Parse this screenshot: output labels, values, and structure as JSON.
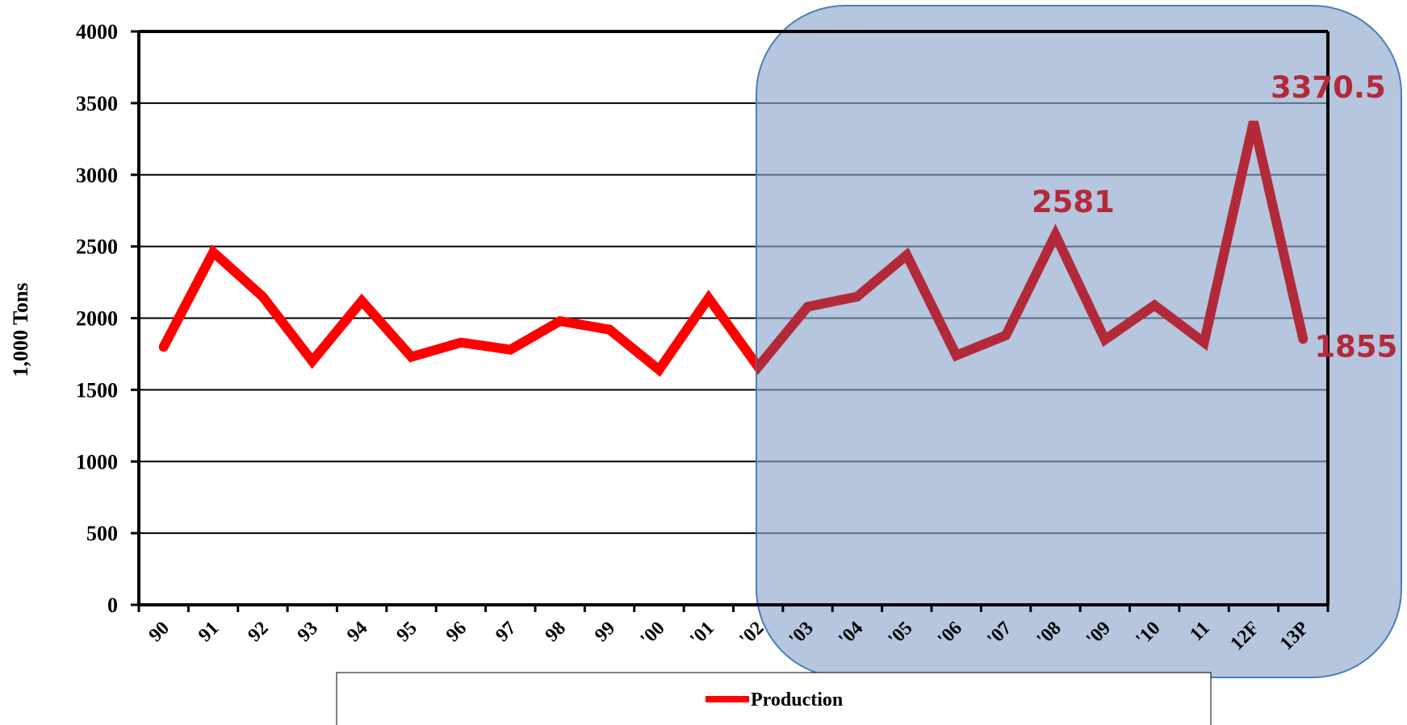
{
  "chart_data": {
    "type": "line",
    "ylabel": "1,000 Tons",
    "ylim": [
      0,
      4000
    ],
    "yticks": [
      0,
      500,
      1000,
      1500,
      2000,
      2500,
      3000,
      3500,
      4000
    ],
    "grid": true,
    "legend_position": "bottom",
    "categories": [
      "90",
      "91",
      "92",
      "93",
      "94",
      "95",
      "96",
      "97",
      "98",
      "99",
      "'00",
      "'01",
      "'02",
      "'03",
      "'04",
      "'05",
      "'06",
      "'07",
      "'08",
      "'09",
      "'10",
      "11",
      "12F",
      "13P"
    ],
    "series": [
      {
        "name": "Production",
        "color": "#ff0000",
        "values": [
          1800,
          2460,
          2150,
          1700,
          2120,
          1730,
          1830,
          1780,
          1980,
          1920,
          1640,
          2140,
          1660,
          2080,
          2150,
          2440,
          1740,
          1880,
          2581,
          1850,
          2090,
          1830,
          3370.5,
          1855
        ]
      }
    ],
    "highlight": {
      "from_category": "'02",
      "to_category": "13P",
      "fill_color": "#8ea8cc",
      "border_color": "#4a7ebb",
      "line_color_inside": "#b22a3a"
    },
    "data_labels": [
      {
        "category": "'08",
        "text": "2581",
        "color": "#b22a3a"
      },
      {
        "category": "12F",
        "text": "3370.5",
        "color": "#b22a3a"
      },
      {
        "category": "13P",
        "text": "1855",
        "color": "#b22a3a"
      }
    ]
  }
}
